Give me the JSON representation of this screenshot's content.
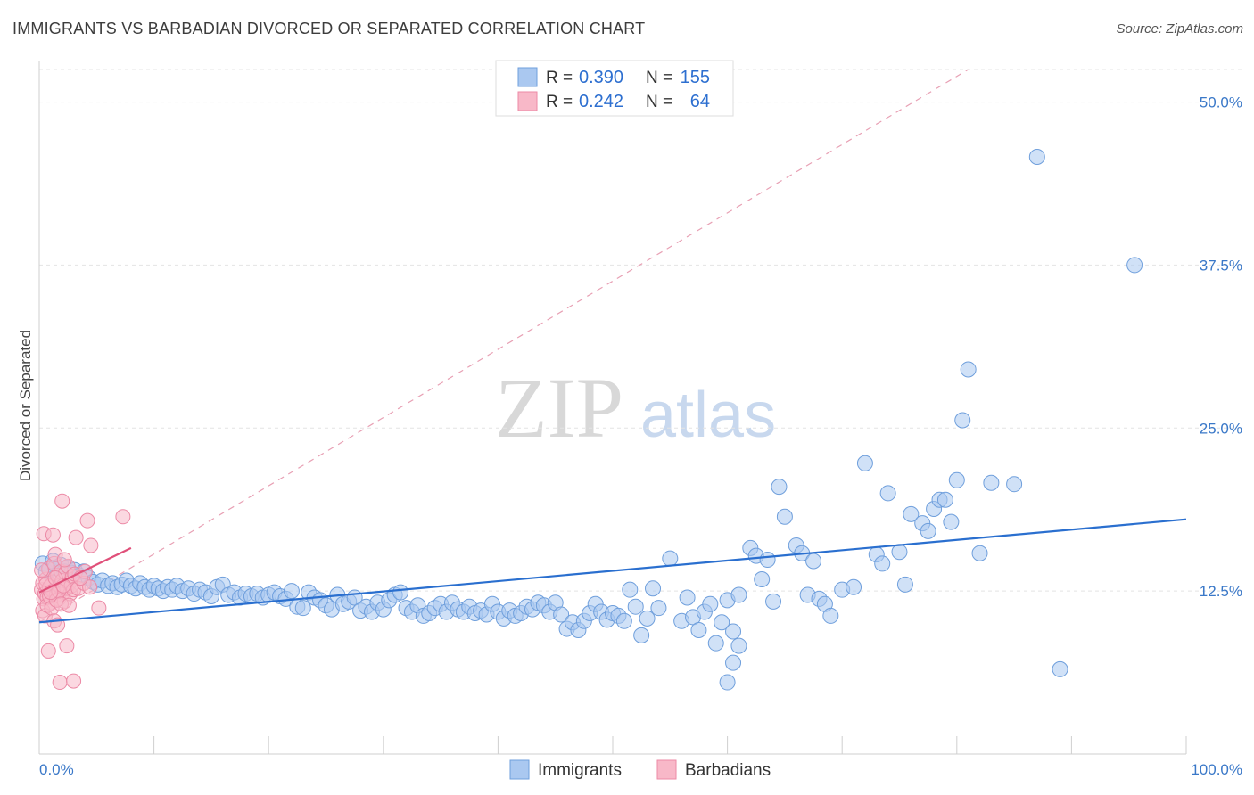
{
  "header": {
    "title": "IMMIGRANTS VS BARBADIAN DIVORCED OR SEPARATED CORRELATION CHART",
    "source": "Source: ZipAtlas.com"
  },
  "watermark": {
    "zip": "ZIP",
    "atlas": "atlas"
  },
  "chart_data": {
    "type": "scatter",
    "title": "IMMIGRANTS VS BARBADIAN DIVORCED OR SEPARATED CORRELATION CHART",
    "xlabel": "",
    "ylabel": "Divorced or Separated",
    "xlim": [
      0,
      100
    ],
    "ylim": [
      0,
      52.5
    ],
    "x_tick_labels": [
      "0.0%",
      "100.0%"
    ],
    "y_ticks": [
      12.5,
      25.0,
      37.5,
      50.0
    ],
    "y_tick_labels": [
      "12.5%",
      "25.0%",
      "37.5%",
      "50.0%"
    ],
    "grid": "horizontal dashed",
    "legend_position": "top-center",
    "colors": {
      "immigrants_fill": "#aac8f0",
      "immigrants_stroke": "#6f9fdc",
      "immigrants_line": "#2a6fcf",
      "barbadians_fill": "#f8b8c8",
      "barbadians_stroke": "#ec8aa6",
      "barbadians_line": "#e0507a",
      "label_blue": "#3a78c8"
    },
    "stats": [
      {
        "r_label": "R =",
        "r": "0.390",
        "n_label": "N =",
        "n": "155"
      },
      {
        "r_label": "R =",
        "r": "0.242",
        "n_label": "N =",
        "n": "64"
      }
    ],
    "series": [
      {
        "name": "Immigrants",
        "trend": {
          "x": [
            0,
            100
          ],
          "y": [
            10.1,
            18.0
          ]
        },
        "points": [
          [
            0.3,
            14.6
          ],
          [
            0.6,
            14.0
          ],
          [
            0.9,
            14.2
          ],
          [
            1.2,
            14.8
          ],
          [
            1.4,
            14.3
          ],
          [
            1.6,
            13.8
          ],
          [
            1.9,
            14.5
          ],
          [
            2.2,
            14.0
          ],
          [
            2.5,
            14.3
          ],
          [
            2.8,
            13.9
          ],
          [
            3.1,
            14.1
          ],
          [
            3.5,
            13.7
          ],
          [
            3.9,
            14.0
          ],
          [
            4.3,
            13.5
          ],
          [
            4.7,
            13.2
          ],
          [
            5.1,
            13.0
          ],
          [
            5.5,
            13.3
          ],
          [
            6.0,
            12.9
          ],
          [
            6.4,
            13.1
          ],
          [
            6.8,
            12.8
          ],
          [
            7.2,
            13.0
          ],
          [
            7.6,
            13.3
          ],
          [
            8.0,
            12.9
          ],
          [
            8.4,
            12.7
          ],
          [
            8.8,
            13.1
          ],
          [
            9.2,
            12.8
          ],
          [
            9.6,
            12.6
          ],
          [
            10.0,
            12.9
          ],
          [
            10.4,
            12.7
          ],
          [
            10.8,
            12.5
          ],
          [
            11.2,
            12.8
          ],
          [
            11.6,
            12.6
          ],
          [
            12.0,
            12.9
          ],
          [
            12.5,
            12.5
          ],
          [
            13.0,
            12.7
          ],
          [
            13.5,
            12.3
          ],
          [
            14.0,
            12.6
          ],
          [
            14.5,
            12.4
          ],
          [
            15.0,
            12.1
          ],
          [
            15.5,
            12.8
          ],
          [
            16.0,
            13.0
          ],
          [
            16.5,
            12.2
          ],
          [
            17.0,
            12.4
          ],
          [
            17.5,
            12.0
          ],
          [
            18.0,
            12.3
          ],
          [
            18.5,
            12.1
          ],
          [
            19.0,
            12.3
          ],
          [
            19.5,
            12.0
          ],
          [
            20.0,
            12.2
          ],
          [
            20.5,
            12.4
          ],
          [
            21.0,
            12.1
          ],
          [
            21.5,
            11.9
          ],
          [
            22.0,
            12.5
          ],
          [
            22.5,
            11.3
          ],
          [
            23.0,
            11.2
          ],
          [
            23.5,
            12.4
          ],
          [
            24.0,
            12.0
          ],
          [
            24.5,
            11.8
          ],
          [
            25.0,
            11.4
          ],
          [
            25.5,
            11.1
          ],
          [
            26.0,
            12.2
          ],
          [
            26.5,
            11.5
          ],
          [
            27.0,
            11.7
          ],
          [
            27.5,
            12.0
          ],
          [
            28.0,
            11.0
          ],
          [
            28.5,
            11.3
          ],
          [
            29.0,
            10.9
          ],
          [
            29.5,
            11.6
          ],
          [
            30.0,
            11.1
          ],
          [
            30.5,
            11.8
          ],
          [
            31.0,
            12.2
          ],
          [
            31.5,
            12.4
          ],
          [
            32.0,
            11.2
          ],
          [
            32.5,
            10.9
          ],
          [
            33.0,
            11.4
          ],
          [
            33.5,
            10.6
          ],
          [
            34.0,
            10.8
          ],
          [
            34.5,
            11.2
          ],
          [
            35.0,
            11.5
          ],
          [
            35.5,
            10.9
          ],
          [
            36.0,
            11.6
          ],
          [
            36.5,
            11.1
          ],
          [
            37.0,
            10.9
          ],
          [
            37.5,
            11.3
          ],
          [
            38.0,
            10.8
          ],
          [
            38.5,
            11.0
          ],
          [
            39.0,
            10.7
          ],
          [
            39.5,
            11.5
          ],
          [
            40.0,
            10.9
          ],
          [
            40.5,
            10.4
          ],
          [
            41.0,
            11.0
          ],
          [
            41.5,
            10.6
          ],
          [
            42.0,
            10.8
          ],
          [
            42.5,
            11.3
          ],
          [
            43.0,
            11.1
          ],
          [
            43.5,
            11.6
          ],
          [
            44.0,
            11.4
          ],
          [
            44.5,
            10.9
          ],
          [
            45.0,
            11.6
          ],
          [
            45.5,
            10.7
          ],
          [
            46.0,
            9.6
          ],
          [
            46.5,
            10.1
          ],
          [
            47.0,
            9.5
          ],
          [
            47.5,
            10.2
          ],
          [
            48.0,
            10.8
          ],
          [
            48.5,
            11.5
          ],
          [
            49.0,
            10.9
          ],
          [
            49.5,
            10.3
          ],
          [
            50.0,
            10.8
          ],
          [
            50.5,
            10.6
          ],
          [
            51.0,
            10.2
          ],
          [
            51.5,
            12.6
          ],
          [
            52.0,
            11.3
          ],
          [
            52.5,
            9.1
          ],
          [
            53.0,
            10.4
          ],
          [
            53.5,
            12.7
          ],
          [
            54.0,
            11.2
          ],
          [
            55.0,
            15.0
          ],
          [
            56.0,
            10.2
          ],
          [
            56.5,
            12.0
          ],
          [
            57.0,
            10.5
          ],
          [
            57.5,
            9.5
          ],
          [
            58.0,
            10.9
          ],
          [
            58.5,
            11.5
          ],
          [
            59.0,
            8.5
          ],
          [
            59.5,
            10.1
          ],
          [
            60.0,
            11.8
          ],
          [
            60.5,
            9.4
          ],
          [
            61.0,
            12.2
          ],
          [
            62.0,
            15.8
          ],
          [
            62.5,
            15.2
          ],
          [
            63.0,
            13.4
          ],
          [
            63.5,
            14.9
          ],
          [
            64.0,
            11.7
          ],
          [
            64.5,
            20.5
          ],
          [
            65.0,
            18.2
          ],
          [
            66.0,
            16.0
          ],
          [
            66.5,
            15.4
          ],
          [
            67.0,
            12.2
          ],
          [
            67.5,
            14.8
          ],
          [
            68.0,
            11.9
          ],
          [
            68.5,
            11.5
          ],
          [
            69.0,
            10.6
          ],
          [
            70.0,
            12.6
          ],
          [
            71.0,
            12.8
          ],
          [
            72.0,
            22.3
          ],
          [
            73.0,
            15.3
          ],
          [
            73.5,
            14.6
          ],
          [
            74.0,
            20.0
          ],
          [
            75.0,
            15.5
          ],
          [
            75.5,
            13.0
          ],
          [
            76.0,
            18.4
          ],
          [
            77.0,
            17.7
          ],
          [
            77.5,
            17.1
          ],
          [
            78.0,
            18.8
          ],
          [
            78.5,
            19.5
          ],
          [
            79.0,
            19.5
          ],
          [
            79.5,
            17.8
          ],
          [
            80.0,
            21.0
          ],
          [
            80.5,
            25.6
          ],
          [
            81.0,
            29.5
          ],
          [
            82.0,
            15.4
          ],
          [
            83.0,
            20.8
          ],
          [
            85.0,
            20.7
          ],
          [
            87.0,
            45.8
          ],
          [
            89.0,
            6.5
          ],
          [
            95.5,
            37.5
          ],
          [
            60.0,
            5.5
          ],
          [
            61.0,
            8.3
          ],
          [
            60.5,
            7.0
          ]
        ]
      },
      {
        "name": "Barbadians",
        "trend": {
          "x": [
            0,
            8
          ],
          "y": [
            12.4,
            15.8
          ]
        },
        "points": [
          [
            0.2,
            12.6
          ],
          [
            0.3,
            13.1
          ],
          [
            0.4,
            11.9
          ],
          [
            0.5,
            12.3
          ],
          [
            0.6,
            13.4
          ],
          [
            0.7,
            12.0
          ],
          [
            0.8,
            14.2
          ],
          [
            0.9,
            12.8
          ],
          [
            1.0,
            11.6
          ],
          [
            1.1,
            13.0
          ],
          [
            1.2,
            12.5
          ],
          [
            1.3,
            14.6
          ],
          [
            1.4,
            15.3
          ],
          [
            1.5,
            12.2
          ],
          [
            1.6,
            13.7
          ],
          [
            1.7,
            11.9
          ],
          [
            1.8,
            12.9
          ],
          [
            1.9,
            14.0
          ],
          [
            2.0,
            13.3
          ],
          [
            2.1,
            12.4
          ],
          [
            2.2,
            11.7
          ],
          [
            2.3,
            13.9
          ],
          [
            2.4,
            12.7
          ],
          [
            2.5,
            14.4
          ],
          [
            2.6,
            13.1
          ],
          [
            2.7,
            12.3
          ],
          [
            2.8,
            12.9
          ],
          [
            2.9,
            13.6
          ],
          [
            3.0,
            12.6
          ],
          [
            3.1,
            13.8
          ],
          [
            0.3,
            11.0
          ],
          [
            0.5,
            10.6
          ],
          [
            0.7,
            11.4
          ],
          [
            0.9,
            12.1
          ],
          [
            1.1,
            11.2
          ],
          [
            1.3,
            10.2
          ],
          [
            1.5,
            11.8
          ],
          [
            1.7,
            12.5
          ],
          [
            1.9,
            11.5
          ],
          [
            2.1,
            12.9
          ],
          [
            0.4,
            16.9
          ],
          [
            1.2,
            16.8
          ],
          [
            2.0,
            19.4
          ],
          [
            3.2,
            16.6
          ],
          [
            4.2,
            17.9
          ],
          [
            4.5,
            16.0
          ],
          [
            7.3,
            18.2
          ],
          [
            1.6,
            9.9
          ],
          [
            2.4,
            8.3
          ],
          [
            0.8,
            7.9
          ],
          [
            1.8,
            5.5
          ],
          [
            3.0,
            5.6
          ],
          [
            5.2,
            11.2
          ],
          [
            3.4,
            12.7
          ],
          [
            3.9,
            13.1
          ],
          [
            4.4,
            12.8
          ],
          [
            4.0,
            14.0
          ],
          [
            0.6,
            13.0
          ],
          [
            1.0,
            12.4
          ],
          [
            1.4,
            13.5
          ],
          [
            2.2,
            14.9
          ],
          [
            2.6,
            11.4
          ],
          [
            0.2,
            14.1
          ],
          [
            3.6,
            13.5
          ]
        ]
      }
    ],
    "reference_line": {
      "style": "dashed",
      "x": [
        0,
        81
      ],
      "y": [
        10.1,
        52.5
      ]
    }
  },
  "legend": {
    "immigrants": "Immigrants",
    "barbadians": "Barbadians"
  }
}
